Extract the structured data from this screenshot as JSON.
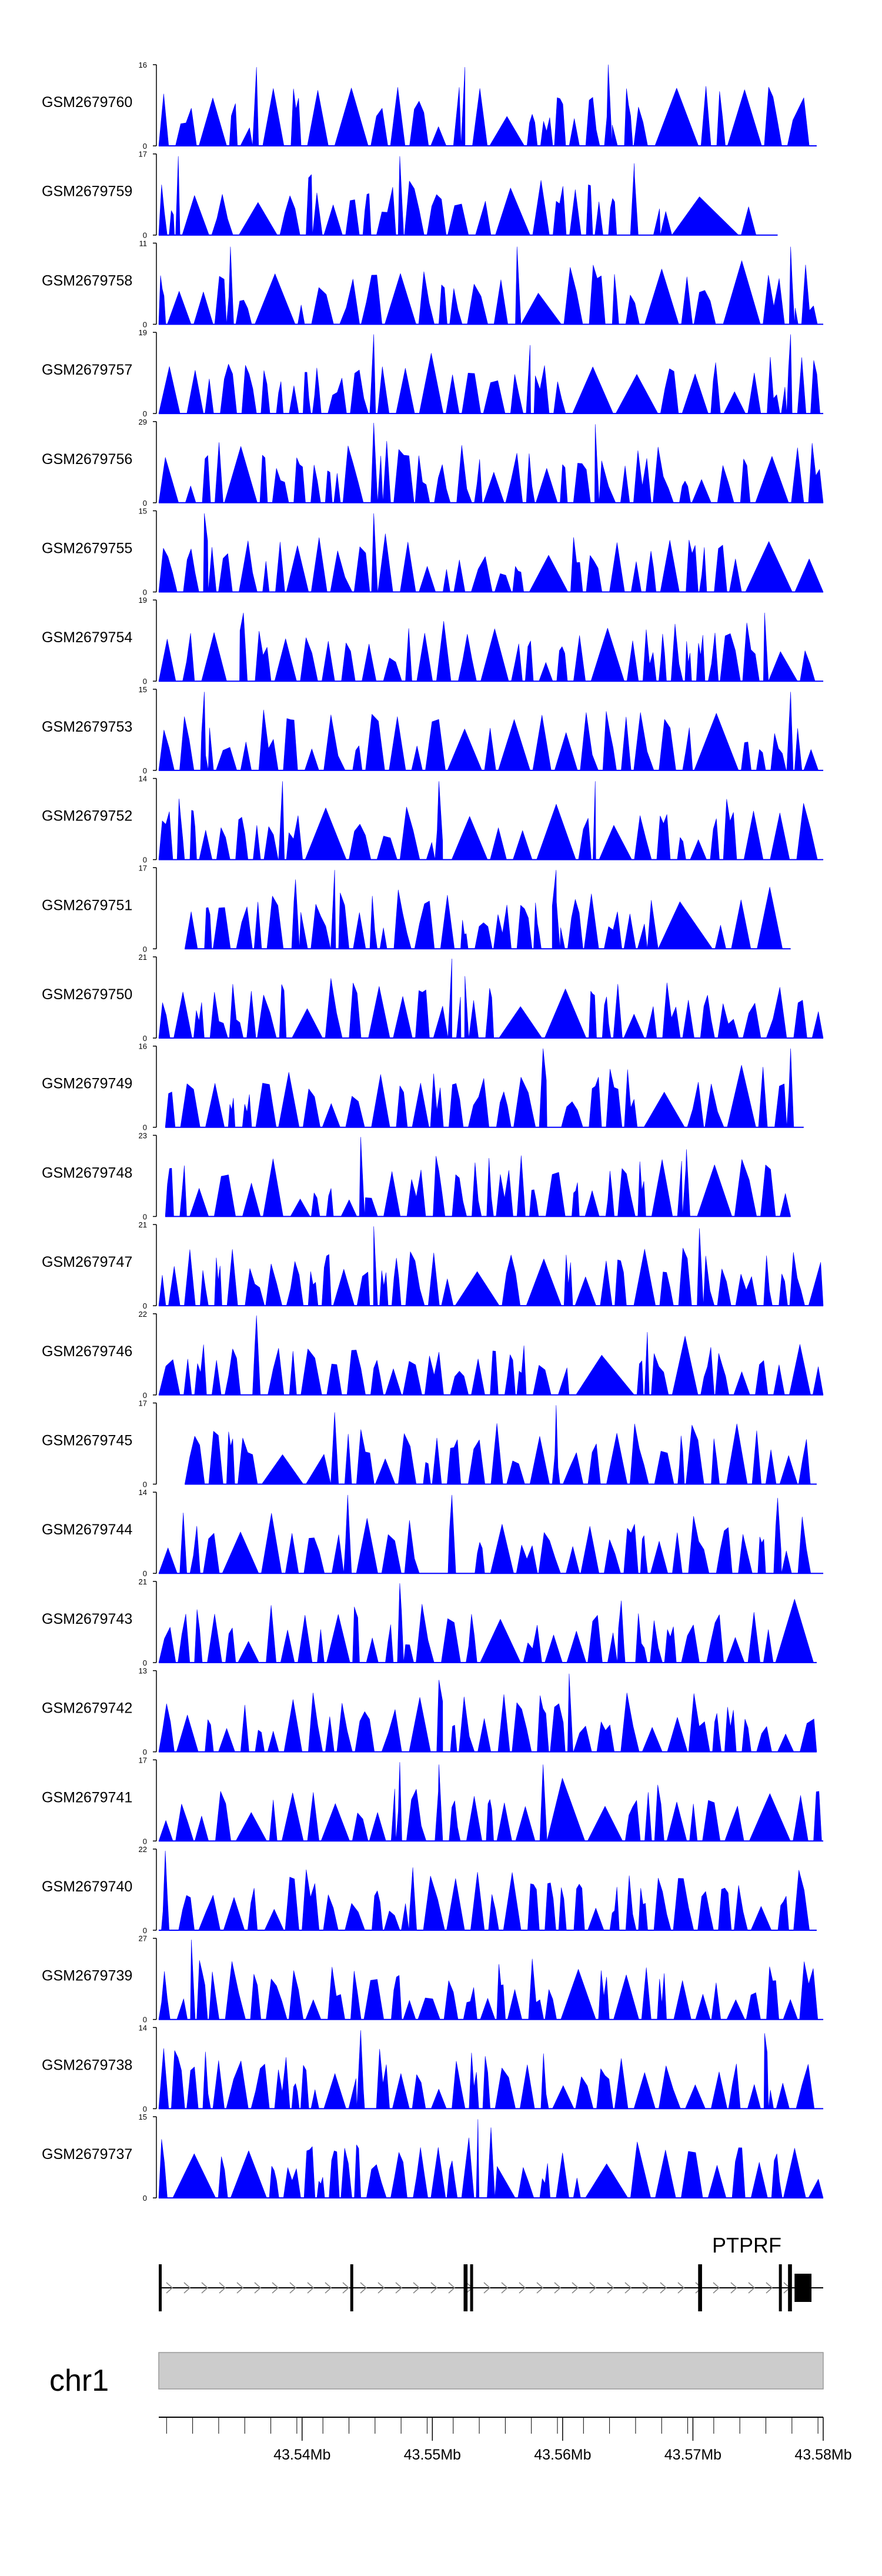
{
  "chart_data": {
    "type": "area",
    "title": "",
    "xlabel": "",
    "ylabel": "",
    "chromosome": "chr1",
    "x_range": [
      43.529,
      43.58
    ],
    "x_ticks": [
      43.54,
      43.55,
      43.56,
      43.57,
      43.58
    ],
    "x_tick_labels": [
      "43.54Mb",
      "43.55Mb",
      "43.56Mb",
      "43.57Mb",
      "43.58Mb"
    ],
    "x_unit": "Mb",
    "minor_tick_step": 0.002,
    "tracks": [
      {
        "name": "GSM2679760",
        "ymax": 16,
        "ylabel_max": "16",
        "ylabel_min": "0",
        "seed": 760,
        "start": 43.529,
        "end": 43.5795,
        "peaks": [
          [
            43.5365,
            15.5
          ],
          [
            43.5525,
            15.5
          ],
          [
            43.5635,
            16
          ]
        ],
        "gaps": []
      },
      {
        "name": "GSM2679759",
        "ymax": 17,
        "ylabel_max": "17",
        "ylabel_min": "0",
        "seed": 759,
        "start": 43.529,
        "end": 43.5765,
        "peaks": [
          [
            43.5305,
            16.5
          ],
          [
            43.5405,
            12
          ],
          [
            43.5475,
            16.5
          ],
          [
            43.5655,
            15
          ]
        ],
        "gaps": [
          [
            43.5545,
            43.5575
          ],
          [
            43.5675,
            43.5735
          ]
        ]
      },
      {
        "name": "GSM2679758",
        "ymax": 11,
        "ylabel_max": "11",
        "ylabel_min": "0",
        "seed": 758,
        "start": 43.529,
        "end": 43.58,
        "peaks": [
          [
            43.5345,
            10.5
          ],
          [
            43.5565,
            10.5
          ],
          [
            43.5775,
            10.5
          ]
        ],
        "gaps": []
      },
      {
        "name": "GSM2679757",
        "ymax": 19,
        "ylabel_max": "19",
        "ylabel_min": "0",
        "seed": 757,
        "start": 43.529,
        "end": 43.58,
        "peaks": [
          [
            43.5455,
            18.5
          ],
          [
            43.5575,
            16
          ],
          [
            43.5775,
            18.5
          ]
        ],
        "gaps": []
      },
      {
        "name": "GSM2679756",
        "ymax": 29,
        "ylabel_max": "29",
        "ylabel_min": "0",
        "seed": 756,
        "start": 43.529,
        "end": 43.58,
        "peaks": [
          [
            43.5455,
            28.5
          ],
          [
            43.5465,
            22
          ],
          [
            43.5625,
            28
          ]
        ],
        "gaps": []
      },
      {
        "name": "GSM2679755",
        "ymax": 15,
        "ylabel_max": "15",
        "ylabel_min": "0",
        "seed": 755,
        "start": 43.529,
        "end": 43.58,
        "peaks": [
          [
            43.5325,
            14.5
          ],
          [
            43.5455,
            14.5
          ]
        ],
        "gaps": []
      },
      {
        "name": "GSM2679754",
        "ymax": 19,
        "ylabel_max": "19",
        "ylabel_min": "0",
        "seed": 754,
        "start": 43.529,
        "end": 43.58,
        "peaks": [
          [
            43.5355,
            16
          ],
          [
            43.5755,
            16
          ]
        ],
        "gaps": []
      },
      {
        "name": "GSM2679753",
        "ymax": 15,
        "ylabel_max": "15",
        "ylabel_min": "0",
        "seed": 753,
        "start": 43.529,
        "end": 43.58,
        "peaks": [
          [
            43.5325,
            14.5
          ],
          [
            43.5775,
            14.5
          ]
        ],
        "gaps": []
      },
      {
        "name": "GSM2679752",
        "ymax": 14,
        "ylabel_max": "14",
        "ylabel_min": "0",
        "seed": 752,
        "start": 43.529,
        "end": 43.58,
        "peaks": [
          [
            43.5385,
            13.5
          ],
          [
            43.5505,
            13.5
          ],
          [
            43.5625,
            13.5
          ]
        ],
        "gaps": []
      },
      {
        "name": "GSM2679751",
        "ymax": 17,
        "ylabel_max": "17",
        "ylabel_min": "0",
        "seed": 751,
        "start": 43.531,
        "end": 43.5775,
        "peaks": [
          [
            43.5395,
            14.5
          ],
          [
            43.5425,
            16.5
          ],
          [
            43.5595,
            16.5
          ]
        ],
        "gaps": [
          [
            43.5665,
            43.5715
          ]
        ]
      },
      {
        "name": "GSM2679750",
        "ymax": 21,
        "ylabel_max": "21",
        "ylabel_min": "0",
        "seed": 750,
        "start": 43.529,
        "end": 43.58,
        "peaks": [
          [
            43.5515,
            20.5
          ],
          [
            43.5525,
            16
          ]
        ],
        "gaps": []
      },
      {
        "name": "GSM2679749",
        "ymax": 16,
        "ylabel_max": "16",
        "ylabel_min": "0",
        "seed": 749,
        "start": 43.5295,
        "end": 43.5785,
        "peaks": [
          [
            43.5585,
            15.5
          ],
          [
            43.5775,
            15.5
          ]
        ],
        "gaps": []
      },
      {
        "name": "GSM2679748",
        "ymax": 23,
        "ylabel_max": "23",
        "ylabel_min": "0",
        "seed": 748,
        "start": 43.5295,
        "end": 43.5775,
        "peaks": [
          [
            43.5445,
            22.5
          ],
          [
            43.5695,
            19
          ]
        ],
        "gaps": []
      },
      {
        "name": "GSM2679747",
        "ymax": 21,
        "ylabel_max": "21",
        "ylabel_min": "0",
        "seed": 747,
        "start": 43.529,
        "end": 43.58,
        "peaks": [
          [
            43.5455,
            20.5
          ],
          [
            43.5705,
            20
          ]
        ],
        "gaps": []
      },
      {
        "name": "GSM2679746",
        "ymax": 22,
        "ylabel_max": "22",
        "ylabel_min": "0",
        "seed": 746,
        "start": 43.529,
        "end": 43.58,
        "peaks": [
          [
            43.5365,
            21.5
          ],
          [
            43.5665,
            17
          ]
        ],
        "gaps": [
          [
            43.5605,
            43.5655
          ]
        ]
      },
      {
        "name": "GSM2679745",
        "ymax": 17,
        "ylabel_max": "17",
        "ylabel_min": "0",
        "seed": 745,
        "start": 43.531,
        "end": 43.5795,
        "peaks": [
          [
            43.5425,
            15
          ],
          [
            43.5595,
            16.5
          ]
        ],
        "gaps": []
      },
      {
        "name": "GSM2679744",
        "ymax": 14,
        "ylabel_max": "14",
        "ylabel_min": "0",
        "seed": 744,
        "start": 43.529,
        "end": 43.58,
        "peaks": [
          [
            43.5435,
            13.5
          ],
          [
            43.5515,
            13.5
          ],
          [
            43.5765,
            13
          ]
        ],
        "gaps": []
      },
      {
        "name": "GSM2679743",
        "ymax": 21,
        "ylabel_max": "21",
        "ylabel_min": "0",
        "seed": 743,
        "start": 43.529,
        "end": 43.5795,
        "peaks": [
          [
            43.5475,
            20.5
          ],
          [
            43.5645,
            16
          ]
        ],
        "gaps": []
      },
      {
        "name": "GSM2679742",
        "ymax": 13,
        "ylabel_max": "13",
        "ylabel_min": "0",
        "seed": 742,
        "start": 43.529,
        "end": 43.5795,
        "peaks": [
          [
            43.5505,
            11.5
          ],
          [
            43.5605,
            12.5
          ]
        ],
        "gaps": []
      },
      {
        "name": "GSM2679741",
        "ymax": 17,
        "ylabel_max": "17",
        "ylabel_min": "0",
        "seed": 741,
        "start": 43.529,
        "end": 43.58,
        "peaks": [
          [
            43.5475,
            16.5
          ],
          [
            43.5505,
            16
          ],
          [
            43.5585,
            16
          ]
        ],
        "gaps": []
      },
      {
        "name": "GSM2679740",
        "ymax": 22,
        "ylabel_max": "22",
        "ylabel_min": "0",
        "seed": 740,
        "start": 43.529,
        "end": 43.5795,
        "peaks": [
          [
            43.5295,
            21.5
          ],
          [
            43.5485,
            17
          ]
        ],
        "gaps": []
      },
      {
        "name": "GSM2679739",
        "ymax": 27,
        "ylabel_max": "27",
        "ylabel_min": "0",
        "seed": 739,
        "start": 43.529,
        "end": 43.58,
        "peaks": [
          [
            43.5315,
            26.5
          ]
        ],
        "gaps": []
      },
      {
        "name": "GSM2679738",
        "ymax": 14,
        "ylabel_max": "14",
        "ylabel_min": "0",
        "seed": 738,
        "start": 43.529,
        "end": 43.58,
        "peaks": [
          [
            43.5445,
            13.5
          ],
          [
            43.5755,
            13
          ]
        ],
        "gaps": []
      },
      {
        "name": "GSM2679737",
        "ymax": 15,
        "ylabel_max": "15",
        "ylabel_min": "0",
        "seed": 737,
        "start": 43.529,
        "end": 43.58,
        "peaks": [
          [
            43.5535,
            14.5
          ],
          [
            43.5545,
            13
          ]
        ],
        "gaps": []
      }
    ],
    "gene": {
      "name": "PTPRF",
      "strand": "+",
      "start": 43.529,
      "end": 43.58,
      "exons": [
        [
          43.529,
          43.5292
        ],
        [
          43.5437,
          43.5439
        ],
        [
          43.5524,
          43.5527
        ],
        [
          43.5529,
          43.5531
        ],
        [
          43.5704,
          43.5707
        ],
        [
          43.5766,
          43.5768
        ],
        [
          43.5773,
          43.5776
        ],
        [
          43.5778,
          43.5791
        ]
      ]
    }
  }
}
